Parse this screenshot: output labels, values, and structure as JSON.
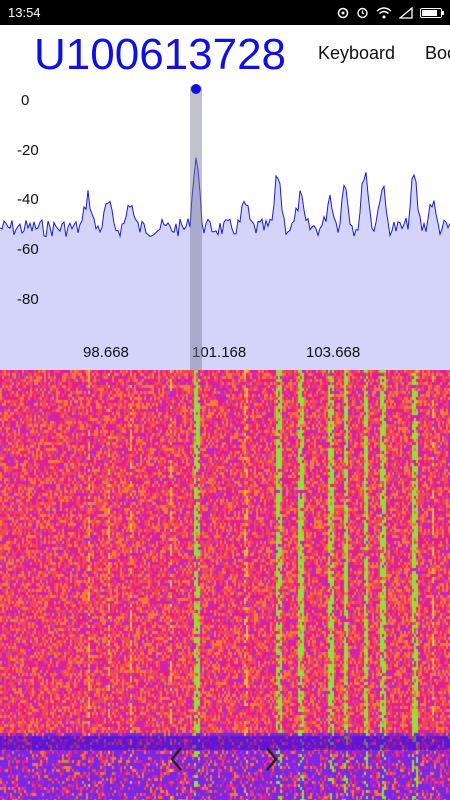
{
  "status_bar": {
    "time": "13:54",
    "icons": [
      "sync-icon",
      "alarm-icon",
      "wifi-icon",
      "signal-icon",
      "battery-icon"
    ],
    "battery_level": 0.85
  },
  "header": {
    "frequency": "U100613728",
    "menu": [
      {
        "label": "Keyboard"
      },
      {
        "label": "Boo"
      }
    ]
  },
  "spectrum": {
    "y_ticks": [
      "0",
      "-20",
      "-40",
      "-60",
      "-80"
    ],
    "x_ticks": [
      "98.668",
      "101.168",
      "103.668"
    ],
    "colors": {
      "fill": "#d4d4fa",
      "line": "#1c1ccc",
      "marker": "#1010e0"
    }
  },
  "waterfall": {
    "nav": {
      "prev": "chevron-left-icon",
      "next": "chevron-right-icon"
    }
  }
}
